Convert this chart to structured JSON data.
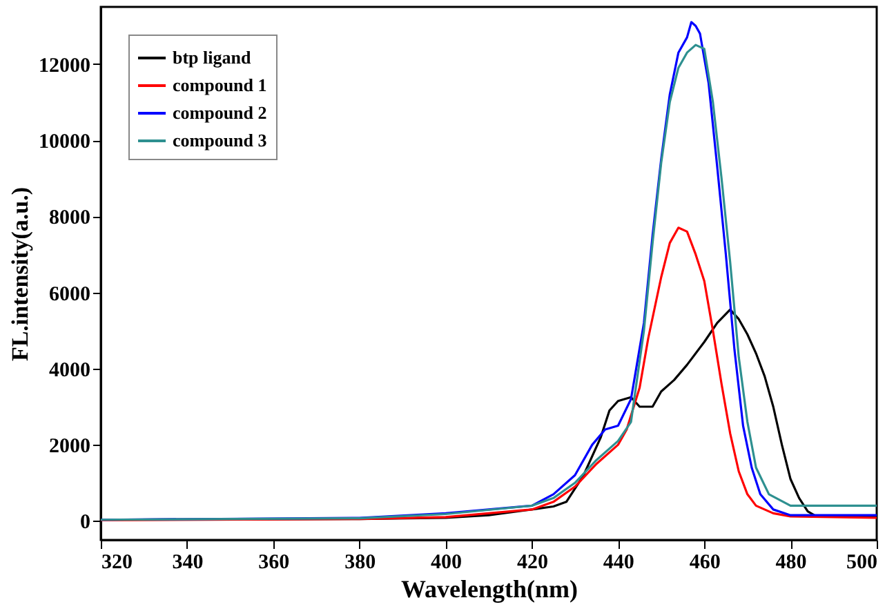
{
  "chart_data": {
    "type": "line",
    "xlabel": "Wavelength(nm)",
    "ylabel": "FL.intensity(a.u.)",
    "xlim": [
      320,
      500
    ],
    "xticks": [
      320,
      340,
      360,
      380,
      400,
      420,
      440,
      460,
      480,
      500
    ],
    "ylim": [
      -500,
      13500
    ],
    "yticks": [
      0,
      2000,
      4000,
      6000,
      8000,
      10000,
      12000
    ],
    "grid": false,
    "legend": "top left",
    "line_style": "solid",
    "marker": "none",
    "series": [
      {
        "name": "btp ligand",
        "color": "#000000",
        "x": [
          320,
          380,
          400,
          410,
          420,
          425,
          428,
          432,
          436,
          438,
          440,
          443,
          445,
          448,
          450,
          453,
          456,
          460,
          463,
          466,
          468,
          470,
          472,
          474,
          476,
          478,
          480,
          482,
          484,
          486,
          500
        ],
        "values": [
          30,
          50,
          80,
          150,
          300,
          380,
          500,
          1200,
          2200,
          2900,
          3150,
          3250,
          3000,
          3000,
          3400,
          3700,
          4100,
          4700,
          5200,
          5550,
          5300,
          4900,
          4400,
          3800,
          3000,
          2000,
          1100,
          600,
          250,
          120,
          100
        ]
      },
      {
        "name": "compound 1",
        "color": "#ff0000",
        "x": [
          320,
          380,
          400,
          420,
          425,
          430,
          435,
          440,
          442,
          445,
          447,
          450,
          452,
          454,
          456,
          458,
          460,
          462,
          464,
          466,
          468,
          470,
          472,
          476,
          480,
          500
        ],
        "values": [
          20,
          50,
          100,
          300,
          500,
          900,
          1500,
          2000,
          2400,
          3500,
          4800,
          6400,
          7300,
          7700,
          7600,
          7000,
          6300,
          5000,
          3600,
          2300,
          1300,
          700,
          400,
          200,
          120,
          80
        ]
      },
      {
        "name": "compound 2",
        "color": "#0000ff",
        "x": [
          320,
          380,
          400,
          420,
          425,
          430,
          434,
          437,
          440,
          443,
          446,
          448,
          450,
          452,
          454,
          456,
          457,
          458,
          459,
          461,
          463,
          465,
          467,
          469,
          471,
          473,
          476,
          480,
          500
        ],
        "values": [
          30,
          80,
          200,
          400,
          700,
          1200,
          2000,
          2400,
          2500,
          3200,
          5200,
          7500,
          9500,
          11200,
          12300,
          12700,
          13100,
          13000,
          12800,
          11500,
          9300,
          7000,
          4500,
          2500,
          1400,
          700,
          300,
          150,
          150
        ]
      },
      {
        "name": "compound 3",
        "color": "#2e9090",
        "x": [
          320,
          380,
          400,
          420,
          425,
          430,
          435,
          440,
          443,
          446,
          448,
          450,
          452,
          454,
          456,
          458,
          460,
          462,
          464,
          466,
          468,
          470,
          472,
          475,
          480,
          500
        ],
        "values": [
          30,
          70,
          180,
          400,
          600,
          1000,
          1600,
          2100,
          2600,
          5000,
          7300,
          9400,
          11000,
          11900,
          12300,
          12500,
          12400,
          11000,
          9000,
          6800,
          4300,
          2600,
          1400,
          700,
          400,
          400
        ]
      }
    ]
  }
}
